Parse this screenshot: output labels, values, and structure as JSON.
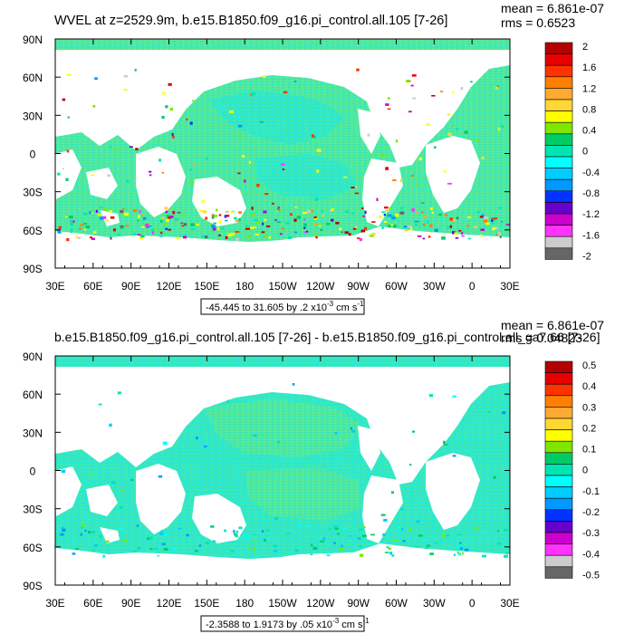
{
  "panels": [
    {
      "title": "WVEL at z=2529.9m, b.e15.B1850.f09_g16.pi_control.all.105 [7-26]",
      "mean_text": "mean = 6.861e-07",
      "rms_text": "rms = 0.6523",
      "range_text": "-45.445 to 31.605 by .2 x10",
      "range_exp": "-3",
      "range_units": " cm s",
      "range_units_exp": "-1",
      "colorbar_labels": [
        "2",
        "1.6",
        "1.2",
        "0.8",
        "0.4",
        "0",
        "-0.4",
        "-0.8",
        "-1.2",
        "-1.6",
        "-2"
      ]
    },
    {
      "title": "b.e15.B1850.f09_g16.pi_control.all.105 [7-26] - b.e15.B1850.f09_g16.pi_control.all_ga7.66 [7-26]",
      "mean_text": "mean = 6.861e-07",
      "rms_text": "rms = 0.04823",
      "range_text": "-2.3588 to 1.9173 by .05 x10",
      "range_exp": "-3",
      "range_units": " cm s",
      "range_units_exp": "-1",
      "colorbar_labels": [
        "0.5",
        "0.4",
        "0.3",
        "0.2",
        "0.1",
        "0",
        "-0.1",
        "-0.2",
        "-0.3",
        "-0.4",
        "-0.5"
      ]
    }
  ],
  "lat_labels": [
    "90N",
    "60N",
    "30N",
    "0",
    "30S",
    "60S",
    "90S"
  ],
  "lon_labels": [
    "30E",
    "60E",
    "90E",
    "120E",
    "150E",
    "180",
    "150W",
    "120W",
    "90W",
    "60W",
    "30W",
    "0",
    "30E"
  ],
  "colors": {
    "palette": [
      "#b30000",
      "#e60000",
      "#ff3300",
      "#ff7f00",
      "#ffaa33",
      "#ffd633",
      "#ffff00",
      "#80e600",
      "#00cc66",
      "#00e6b3",
      "#00ffff",
      "#00ccff",
      "#0099ff",
      "#0033ff",
      "#6600cc",
      "#cc00cc",
      "#ff33ff",
      "#cccccc",
      "#666666"
    ],
    "ocean_main": "#4fe8a0",
    "ocean_alt": "#29e8d4"
  }
}
